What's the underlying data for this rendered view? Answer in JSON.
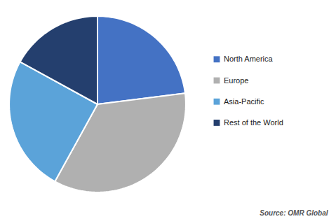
{
  "chart_data": {
    "type": "pie",
    "categories": [
      "North America",
      "Europe",
      "Asia-Pacific",
      "Rest of the World"
    ],
    "values": [
      23,
      35,
      25,
      17
    ],
    "colors": [
      "#4472c4",
      "#b0b0b0",
      "#5ba3d9",
      "#243f6e"
    ],
    "legend": "right",
    "annotations": [
      "Source: OMR Global"
    ]
  }
}
